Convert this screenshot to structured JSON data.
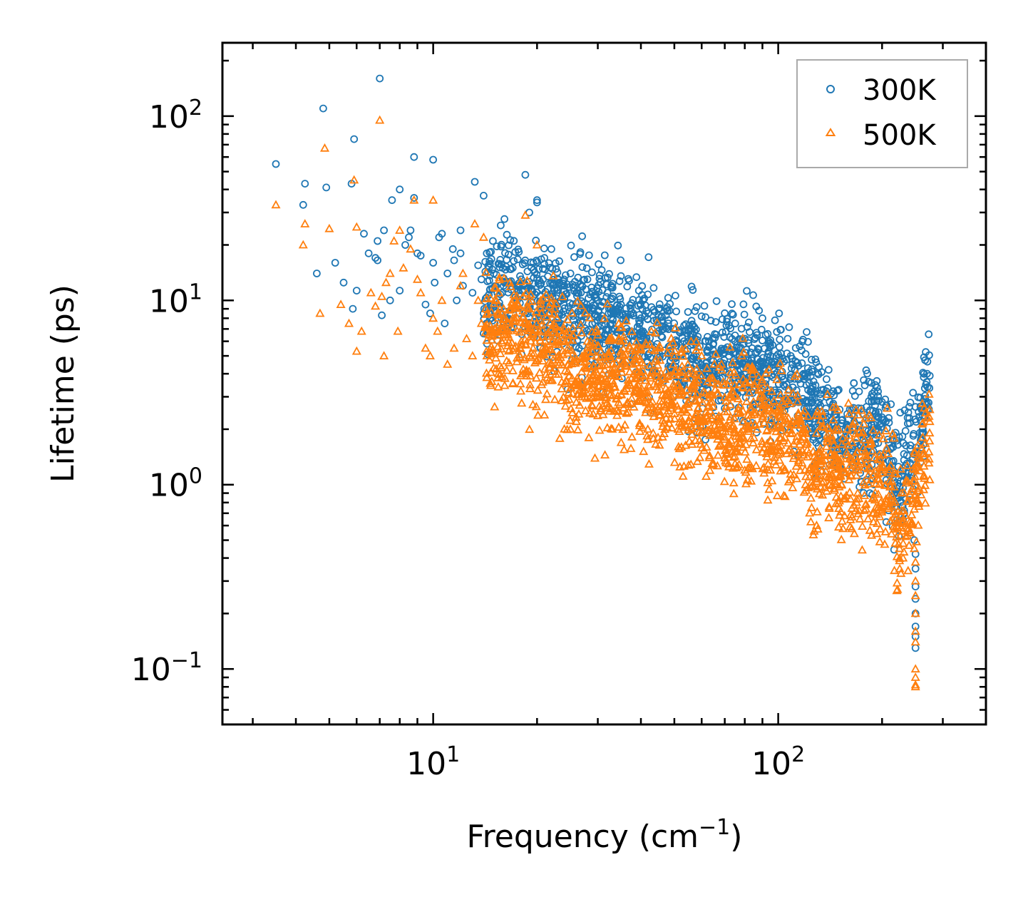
{
  "chart_data": {
    "type": "scatter",
    "title": "",
    "xlabel": "Frequency (cm",
    "xlabel_sup": "−1",
    "xlabel_suffix": ")",
    "ylabel": "Lifetime (ps)",
    "xscale": "log",
    "yscale": "log",
    "xlim": [
      2.45,
      400
    ],
    "ylim": [
      0.05,
      250
    ],
    "x_tick_labels": [
      {
        "value": 10,
        "base": "10",
        "exp": "1"
      },
      {
        "value": 100,
        "base": "10",
        "exp": "2"
      }
    ],
    "y_tick_labels": [
      {
        "value": 0.1,
        "base": "10",
        "exp": "−1"
      },
      {
        "value": 1,
        "base": "10",
        "exp": "0"
      },
      {
        "value": 10,
        "base": "10",
        "exp": "1"
      },
      {
        "value": 100,
        "base": "10",
        "exp": "2"
      }
    ],
    "legend_position": "top-right",
    "grid": false,
    "series": [
      {
        "name": "300K",
        "marker": "circle",
        "color": "#1f77b4",
        "anchors": [
          [
            14,
            10
          ],
          [
            16,
            12
          ],
          [
            18,
            11.5
          ],
          [
            20,
            10
          ],
          [
            25,
            9
          ],
          [
            30,
            8
          ],
          [
            40,
            7
          ],
          [
            50,
            5.5
          ],
          [
            60,
            4.2
          ],
          [
            70,
            4.5
          ],
          [
            80,
            4.3
          ],
          [
            90,
            4
          ],
          [
            100,
            3.8
          ],
          [
            110,
            3.7
          ],
          [
            120,
            3.2
          ],
          [
            130,
            2.6
          ],
          [
            140,
            2.2
          ],
          [
            150,
            1.9
          ],
          [
            170,
            1.95
          ],
          [
            200,
            1.9
          ],
          [
            210,
            1.5
          ],
          [
            220,
            0.95
          ],
          [
            240,
            1.6
          ],
          [
            255,
            1.9
          ],
          [
            265,
            2.7
          ],
          [
            275,
            3.3
          ]
        ],
        "spread": 0.3,
        "bulk_count": 1700,
        "points": [
          [
            3.5,
            55
          ],
          [
            4.2,
            33
          ],
          [
            4.25,
            43
          ],
          [
            4.8,
            110
          ],
          [
            4.9,
            41
          ],
          [
            4.6,
            14
          ],
          [
            5.2,
            16
          ],
          [
            5.5,
            12.5
          ],
          [
            5.8,
            43
          ],
          [
            5.9,
            75
          ],
          [
            5.85,
            9
          ],
          [
            6,
            11.3
          ],
          [
            6.3,
            23
          ],
          [
            6.5,
            18
          ],
          [
            6.8,
            17
          ],
          [
            6.9,
            16.5
          ],
          [
            6.9,
            21
          ],
          [
            7.1,
            8.3
          ],
          [
            7.2,
            24
          ],
          [
            7,
            160
          ],
          [
            7.5,
            10
          ],
          [
            7.6,
            35
          ],
          [
            8,
            40
          ],
          [
            8,
            11.3
          ],
          [
            8.3,
            20
          ],
          [
            8.5,
            22
          ],
          [
            8.6,
            24
          ],
          [
            8.8,
            60
          ],
          [
            8.8,
            36
          ],
          [
            9,
            18
          ],
          [
            9.2,
            17.5
          ],
          [
            9.5,
            9.5
          ],
          [
            9.8,
            8.5
          ],
          [
            10,
            58
          ],
          [
            10,
            16
          ],
          [
            10.1,
            12.5
          ],
          [
            10.4,
            22
          ],
          [
            10.6,
            23
          ],
          [
            10.8,
            7.5
          ],
          [
            11,
            14
          ],
          [
            11.4,
            19
          ],
          [
            11.5,
            16.5
          ],
          [
            11.7,
            10
          ],
          [
            12,
            24
          ],
          [
            12,
            18
          ],
          [
            12.2,
            12
          ],
          [
            13,
            11
          ],
          [
            13.2,
            44
          ],
          [
            13.5,
            15.5
          ],
          [
            13.8,
            13
          ],
          [
            14,
            8.5
          ],
          [
            14,
            37
          ],
          [
            14.3,
            18
          ],
          [
            14.5,
            9
          ],
          [
            15,
            14
          ],
          [
            16,
            12
          ],
          [
            17,
            15
          ],
          [
            18,
            13
          ],
          [
            18.5,
            48
          ],
          [
            19,
            30
          ],
          [
            19.5,
            16
          ],
          [
            20,
            34
          ],
          [
            20,
            35
          ],
          [
            20.8,
            13
          ],
          [
            21,
            17
          ],
          [
            21.5,
            13.5
          ],
          [
            22,
            19
          ],
          [
            24,
            12
          ],
          [
            25,
            14
          ],
          [
            26,
            11
          ],
          [
            27,
            12
          ],
          [
            28,
            13
          ],
          [
            30,
            10
          ],
          [
            32,
            11
          ],
          [
            35,
            9.5
          ],
          [
            38,
            8.5
          ],
          [
            40,
            8
          ],
          [
            42,
            8.5
          ],
          [
            45,
            9
          ],
          [
            48,
            7.5
          ],
          [
            50,
            5.8
          ],
          [
            55,
            6
          ],
          [
            58,
            9.2
          ],
          [
            60,
            8.2
          ],
          [
            63,
            6
          ],
          [
            72,
            7.3
          ],
          [
            75,
            6
          ],
          [
            80,
            6.2
          ],
          [
            84,
            5.5
          ],
          [
            88,
            8.8
          ],
          [
            90,
            8
          ],
          [
            92,
            6.5
          ],
          [
            95,
            5
          ],
          [
            100,
            4.5
          ],
          [
            110,
            4.5
          ],
          [
            120,
            4
          ],
          [
            140,
            4.2
          ],
          [
            190,
            3.2
          ],
          [
            215,
            1.1
          ],
          [
            220,
            0.9
          ],
          [
            240,
            2.3
          ],
          [
            248,
            0.5
          ],
          [
            250,
            0.42
          ],
          [
            250,
            0.35
          ],
          [
            250,
            0.28
          ],
          [
            250,
            0.24
          ],
          [
            250,
            0.2
          ],
          [
            250,
            0.17
          ],
          [
            250,
            0.15
          ],
          [
            250,
            0.13
          ],
          [
            270,
            4
          ],
          [
            275,
            3.9
          ]
        ]
      },
      {
        "name": "500K",
        "marker": "triangle",
        "color": "#ff7f0e",
        "anchors": [
          [
            14,
            6
          ],
          [
            16,
            6.5
          ],
          [
            18,
            6
          ],
          [
            20,
            5.5
          ],
          [
            25,
            4.5
          ],
          [
            30,
            4
          ],
          [
            40,
            3.5
          ],
          [
            50,
            3
          ],
          [
            60,
            2.4
          ],
          [
            70,
            2.3
          ],
          [
            80,
            2.3
          ],
          [
            90,
            2.2
          ],
          [
            100,
            2.1
          ],
          [
            110,
            1.9
          ],
          [
            120,
            1.6
          ],
          [
            125,
            1.1
          ],
          [
            130,
            1.2
          ],
          [
            140,
            1.5
          ],
          [
            150,
            1.1
          ],
          [
            170,
            1.15
          ],
          [
            200,
            1.05
          ],
          [
            210,
            1.0
          ],
          [
            220,
            0.55
          ],
          [
            240,
            0.7
          ],
          [
            255,
            1.1
          ],
          [
            265,
            1.6
          ],
          [
            275,
            2
          ]
        ],
        "spread": 0.32,
        "bulk_count": 1700,
        "points": [
          [
            3.5,
            33
          ],
          [
            4.2,
            20
          ],
          [
            4.25,
            26
          ],
          [
            4.7,
            8.5
          ],
          [
            4.85,
            67
          ],
          [
            5,
            24.5
          ],
          [
            5.4,
            9.5
          ],
          [
            5.7,
            7.5
          ],
          [
            5.9,
            45
          ],
          [
            6,
            25
          ],
          [
            6,
            5.3
          ],
          [
            6.2,
            6.8
          ],
          [
            6.6,
            11
          ],
          [
            6.8,
            9.3
          ],
          [
            7.1,
            10.5
          ],
          [
            7.2,
            5
          ],
          [
            7,
            95
          ],
          [
            7.3,
            12.5
          ],
          [
            7.5,
            14
          ],
          [
            7.7,
            21
          ],
          [
            7.9,
            6.8
          ],
          [
            8,
            24
          ],
          [
            8.2,
            15
          ],
          [
            8.6,
            19
          ],
          [
            8.8,
            35
          ],
          [
            9,
            13
          ],
          [
            9.2,
            11
          ],
          [
            9.5,
            5.5
          ],
          [
            9.8,
            5
          ],
          [
            10,
            35
          ],
          [
            10,
            8
          ],
          [
            10.3,
            6.8
          ],
          [
            10.6,
            10
          ],
          [
            11,
            4.5
          ],
          [
            11.5,
            5.5
          ],
          [
            12,
            12
          ],
          [
            12.2,
            14
          ],
          [
            12.5,
            6.2
          ],
          [
            13,
            5
          ],
          [
            13.2,
            26
          ],
          [
            13.5,
            10
          ],
          [
            13.8,
            7.5
          ],
          [
            14,
            22
          ],
          [
            14.2,
            9
          ],
          [
            14.8,
            7
          ],
          [
            15.5,
            11
          ],
          [
            16,
            9
          ],
          [
            17,
            8
          ],
          [
            18,
            6
          ],
          [
            18.5,
            29
          ],
          [
            19,
            9
          ],
          [
            20,
            20
          ],
          [
            20.5,
            10
          ],
          [
            22,
            7
          ],
          [
            24,
            7
          ],
          [
            25,
            2
          ],
          [
            26,
            2.2
          ],
          [
            28,
            6
          ],
          [
            30,
            6.5
          ],
          [
            32,
            5
          ],
          [
            35,
            6
          ],
          [
            38,
            4.5
          ],
          [
            40,
            5.5
          ],
          [
            45,
            5.5
          ],
          [
            50,
            5
          ],
          [
            55,
            4
          ],
          [
            60,
            5
          ],
          [
            62,
            1.6
          ],
          [
            65,
            1.3
          ],
          [
            70,
            1.4
          ],
          [
            72,
            1.25
          ],
          [
            75,
            1.3
          ],
          [
            80,
            1.2
          ],
          [
            85,
            1.8
          ],
          [
            90,
            1.5
          ],
          [
            95,
            1.2
          ],
          [
            100,
            1.6
          ],
          [
            110,
            2.2
          ],
          [
            120,
            1.0
          ],
          [
            125,
            0.75
          ],
          [
            130,
            2.5
          ],
          [
            140,
            1.1
          ],
          [
            150,
            1.1
          ],
          [
            170,
            0.9
          ],
          [
            180,
            1.3
          ],
          [
            190,
            1.4
          ],
          [
            200,
            1.2
          ],
          [
            215,
            0.8
          ],
          [
            220,
            0.6
          ],
          [
            225,
            0.35
          ],
          [
            230,
            0.4
          ],
          [
            240,
            0.55
          ],
          [
            248,
            0.45
          ],
          [
            250,
            0.38
          ],
          [
            250,
            0.3
          ],
          [
            250,
            0.25
          ],
          [
            250,
            0.2
          ],
          [
            250,
            0.16
          ],
          [
            250,
            0.14
          ],
          [
            250,
            0.1
          ],
          [
            250,
            0.09
          ],
          [
            250,
            0.082
          ],
          [
            250,
            0.08
          ],
          [
            270,
            2.3
          ],
          [
            275,
            2.2
          ]
        ]
      }
    ]
  }
}
